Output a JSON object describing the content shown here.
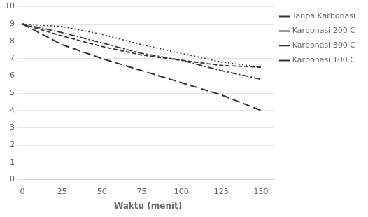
{
  "chart_data": {
    "type": "line",
    "xlabel": "Waktu (menit)",
    "xlim": [
      0,
      158
    ],
    "xticks": [
      0,
      25,
      50,
      75,
      100,
      125,
      150
    ],
    "ylim": [
      0,
      10
    ],
    "yticks": [
      0,
      1,
      2,
      3,
      4,
      5,
      6,
      7,
      8,
      9,
      10
    ],
    "grid": "y",
    "legend": "right",
    "series": [
      {
        "name": "Tanpa Karbonasi",
        "color": "#333333",
        "line_style": "dashdot",
        "x": [
          0,
          25,
          50,
          75,
          100,
          125,
          150
        ],
        "values": [
          9,
          8.5,
          7.9,
          7.3,
          6.9,
          6.3,
          5.8
        ]
      },
      {
        "name": "Karbonasi 200 C",
        "color": "#333333",
        "line_style": "dashed",
        "x": [
          0,
          25,
          50,
          75,
          100,
          125,
          150
        ],
        "values": [
          9,
          8.3,
          7.7,
          7.2,
          6.9,
          6.6,
          6.5
        ]
      },
      {
        "name": "Karbonasi 300 C",
        "color": "#333333",
        "line_style": "dotted",
        "x": [
          0,
          25,
          50,
          75,
          100,
          125,
          150
        ],
        "values": [
          9,
          8.85,
          8.4,
          7.8,
          7.3,
          6.8,
          6.5
        ]
      },
      {
        "name": "Karbonasi 100 C",
        "color": "#333333",
        "line_style": "longdash",
        "x": [
          0,
          25,
          50,
          75,
          100,
          125,
          150
        ],
        "values": [
          9,
          7.8,
          7.0,
          6.3,
          5.6,
          4.9,
          4.0
        ]
      }
    ]
  }
}
